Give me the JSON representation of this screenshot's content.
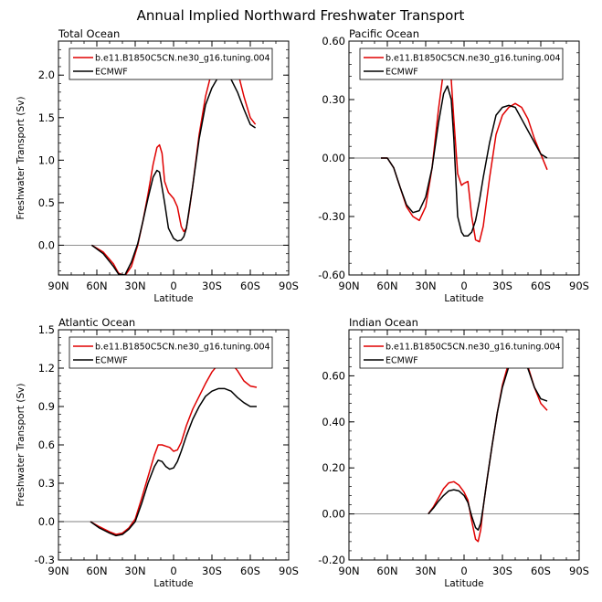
{
  "title": "Annual Implied Northward Freshwater Transport",
  "colors": {
    "model": "#e00000",
    "obs": "#000000",
    "zero_line": "#808080"
  },
  "chart_data": [
    {
      "type": "line",
      "panel_title": "Total Ocean",
      "xlabel": "Latitude",
      "ylabel": "Freshwater Transport (Sv)",
      "xlim": [
        -90,
        90
      ],
      "ylim": [
        -0.35,
        2.4
      ],
      "xticks": [
        -90,
        -60,
        -30,
        0,
        30,
        60,
        90
      ],
      "xtick_labels": [
        "90N",
        "60N",
        "30N",
        "0",
        "30S",
        "60S",
        "90S"
      ],
      "yticks": [
        0.0,
        0.5,
        1.0,
        1.5,
        2.0
      ],
      "ytick_labels": [
        "0.0",
        "0.5",
        "1.0",
        "1.5",
        "2.0"
      ],
      "legend_position": "top",
      "series": [
        {
          "name": "b.e11.B1850C5CN.ne30_g16.tuning.004",
          "color": "#e00000",
          "x": [
            -64,
            -55,
            -47,
            -43,
            -38,
            -33,
            -28,
            -24,
            -20,
            -16,
            -13,
            -11,
            -9,
            -7,
            -4,
            0,
            3,
            6,
            8,
            10,
            12,
            15,
            20,
            25,
            30,
            35,
            40,
            45,
            50,
            55,
            60,
            64
          ],
          "y": [
            0,
            -0.08,
            -0.22,
            -0.33,
            -0.36,
            -0.25,
            0,
            0.28,
            0.6,
            0.95,
            1.15,
            1.18,
            1.08,
            0.75,
            0.62,
            0.55,
            0.45,
            0.22,
            0.16,
            0.2,
            0.38,
            0.7,
            1.3,
            1.75,
            2.05,
            2.2,
            2.25,
            2.2,
            2.05,
            1.75,
            1.5,
            1.42
          ]
        },
        {
          "name": "ECMWF",
          "color": "#000000",
          "x": [
            -64,
            -55,
            -47,
            -43,
            -38,
            -33,
            -28,
            -24,
            -20,
            -16,
            -13,
            -11,
            -9,
            -7,
            -4,
            0,
            3,
            6,
            8,
            10,
            12,
            15,
            20,
            25,
            30,
            35,
            40,
            45,
            50,
            55,
            60,
            64
          ],
          "y": [
            0,
            -0.1,
            -0.25,
            -0.34,
            -0.35,
            -0.2,
            0.02,
            0.28,
            0.55,
            0.8,
            0.88,
            0.86,
            0.68,
            0.5,
            0.2,
            0.08,
            0.05,
            0.06,
            0.1,
            0.2,
            0.4,
            0.7,
            1.25,
            1.65,
            1.85,
            1.98,
            2.02,
            1.95,
            1.8,
            1.6,
            1.42,
            1.38
          ]
        }
      ]
    },
    {
      "type": "line",
      "panel_title": "Pacific Ocean",
      "xlabel": "Latitude",
      "ylabel": "",
      "xlim": [
        -90,
        90
      ],
      "ylim": [
        -0.6,
        0.6
      ],
      "xticks": [
        -90,
        -60,
        -30,
        0,
        30,
        60,
        90
      ],
      "xtick_labels": [
        "90N",
        "60N",
        "30N",
        "0",
        "30S",
        "60S",
        "90S"
      ],
      "yticks": [
        -0.6,
        -0.3,
        0.0,
        0.3,
        0.6
      ],
      "ytick_labels": [
        "-0.60",
        "-0.30",
        "0.00",
        "0.30",
        "0.60"
      ],
      "legend_position": "top",
      "series": [
        {
          "name": "b.e11.B1850C5CN.ne30_g16.tuning.004",
          "color": "#e00000",
          "x": [
            -65,
            -60,
            -55,
            -50,
            -45,
            -40,
            -35,
            -30,
            -25,
            -20,
            -16,
            -13,
            -10,
            -8,
            -5,
            -2,
            0,
            3,
            6,
            9,
            12,
            15,
            20,
            25,
            30,
            35,
            40,
            45,
            50,
            55,
            60,
            65
          ],
          "y": [
            0,
            0,
            -0.05,
            -0.15,
            -0.25,
            -0.3,
            -0.32,
            -0.25,
            -0.05,
            0.25,
            0.45,
            0.49,
            0.4,
            0.2,
            -0.08,
            -0.14,
            -0.13,
            -0.12,
            -0.3,
            -0.42,
            -0.43,
            -0.35,
            -0.1,
            0.12,
            0.22,
            0.26,
            0.28,
            0.26,
            0.2,
            0.1,
            0.02,
            -0.06
          ]
        },
        {
          "name": "ECMWF",
          "color": "#000000",
          "x": [
            -65,
            -60,
            -55,
            -50,
            -45,
            -40,
            -35,
            -30,
            -25,
            -20,
            -16,
            -13,
            -10,
            -8,
            -5,
            -2,
            0,
            3,
            6,
            9,
            12,
            15,
            20,
            25,
            30,
            35,
            40,
            45,
            50,
            55,
            60,
            65
          ],
          "y": [
            0,
            0,
            -0.05,
            -0.15,
            -0.24,
            -0.28,
            -0.27,
            -0.2,
            -0.05,
            0.18,
            0.33,
            0.37,
            0.3,
            0.1,
            -0.3,
            -0.38,
            -0.4,
            -0.4,
            -0.38,
            -0.32,
            -0.22,
            -0.1,
            0.08,
            0.22,
            0.26,
            0.27,
            0.26,
            0.2,
            0.14,
            0.08,
            0.02,
            0
          ]
        }
      ]
    },
    {
      "type": "line",
      "panel_title": "Atlantic Ocean",
      "xlabel": "Latitude",
      "ylabel": "Freshwater Transport (Sv)",
      "xlim": [
        -90,
        90
      ],
      "ylim": [
        -0.3,
        1.5
      ],
      "xticks": [
        -90,
        -60,
        -30,
        0,
        30,
        60,
        90
      ],
      "xtick_labels": [
        "90N",
        "60N",
        "30N",
        "0",
        "30S",
        "60S",
        "90S"
      ],
      "yticks": [
        -0.3,
        0.0,
        0.3,
        0.6,
        0.9,
        1.2,
        1.5
      ],
      "ytick_labels": [
        "-0.3",
        "0.0",
        "0.3",
        "0.6",
        "0.9",
        "1.2",
        "1.5"
      ],
      "legend_position": "top",
      "series": [
        {
          "name": "b.e11.B1850C5CN.ne30_g16.tuning.004",
          "color": "#e00000",
          "x": [
            -65,
            -58,
            -50,
            -45,
            -40,
            -35,
            -30,
            -25,
            -20,
            -15,
            -12,
            -9,
            -6,
            -3,
            0,
            3,
            6,
            10,
            15,
            20,
            25,
            30,
            35,
            40,
            45,
            50,
            55,
            60,
            65
          ],
          "y": [
            0,
            -0.04,
            -0.08,
            -0.1,
            -0.09,
            -0.05,
            0.02,
            0.18,
            0.35,
            0.52,
            0.6,
            0.6,
            0.59,
            0.58,
            0.55,
            0.56,
            0.62,
            0.75,
            0.88,
            0.98,
            1.08,
            1.17,
            1.23,
            1.26,
            1.24,
            1.18,
            1.1,
            1.06,
            1.05
          ]
        },
        {
          "name": "ECMWF",
          "color": "#000000",
          "x": [
            -65,
            -58,
            -50,
            -45,
            -40,
            -35,
            -30,
            -25,
            -20,
            -15,
            -12,
            -9,
            -6,
            -3,
            0,
            3,
            6,
            10,
            15,
            20,
            25,
            30,
            35,
            40,
            45,
            50,
            55,
            60,
            65
          ],
          "y": [
            0,
            -0.05,
            -0.09,
            -0.11,
            -0.1,
            -0.06,
            0,
            0.14,
            0.3,
            0.43,
            0.48,
            0.47,
            0.43,
            0.41,
            0.42,
            0.47,
            0.55,
            0.67,
            0.8,
            0.9,
            0.98,
            1.02,
            1.04,
            1.04,
            1.02,
            0.97,
            0.93,
            0.9,
            0.9
          ]
        }
      ]
    },
    {
      "type": "line",
      "panel_title": "Indian Ocean",
      "xlabel": "Latitude",
      "ylabel": "",
      "xlim": [
        -90,
        90
      ],
      "ylim": [
        -0.2,
        0.8
      ],
      "xticks": [
        -90,
        -60,
        -30,
        0,
        30,
        60,
        90
      ],
      "xtick_labels": [
        "90N",
        "60N",
        "30N",
        "0",
        "30S",
        "60S",
        "90S"
      ],
      "yticks": [
        -0.2,
        0.0,
        0.2,
        0.4,
        0.6
      ],
      "ytick_labels": [
        "-0.20",
        "0.00",
        "0.20",
        "0.40",
        "0.60"
      ],
      "legend_position": "top",
      "series": [
        {
          "name": "b.e11.B1850C5CN.ne30_g16.tuning.004",
          "color": "#e00000",
          "x": [
            -28,
            -24,
            -20,
            -16,
            -12,
            -8,
            -4,
            0,
            3,
            6,
            9,
            11,
            13,
            15,
            18,
            22,
            26,
            30,
            35,
            40,
            43,
            46,
            50,
            55,
            60,
            65
          ],
          "y": [
            0,
            0.03,
            0.07,
            0.11,
            0.135,
            0.14,
            0.125,
            0.095,
            0.06,
            -0.03,
            -0.11,
            -0.12,
            -0.07,
            0.03,
            0.15,
            0.3,
            0.44,
            0.56,
            0.66,
            0.72,
            0.73,
            0.71,
            0.64,
            0.55,
            0.48,
            0.45
          ]
        },
        {
          "name": "ECMWF",
          "color": "#000000",
          "x": [
            -28,
            -24,
            -20,
            -16,
            -12,
            -8,
            -4,
            0,
            3,
            6,
            9,
            11,
            13,
            15,
            18,
            22,
            26,
            30,
            35,
            40,
            43,
            46,
            50,
            55,
            60,
            65
          ],
          "y": [
            0,
            0.025,
            0.055,
            0.08,
            0.1,
            0.105,
            0.1,
            0.08,
            0.05,
            -0.01,
            -0.06,
            -0.07,
            -0.04,
            0.03,
            0.15,
            0.3,
            0.44,
            0.55,
            0.64,
            0.69,
            0.7,
            0.69,
            0.63,
            0.55,
            0.5,
            0.49
          ]
        }
      ]
    }
  ]
}
